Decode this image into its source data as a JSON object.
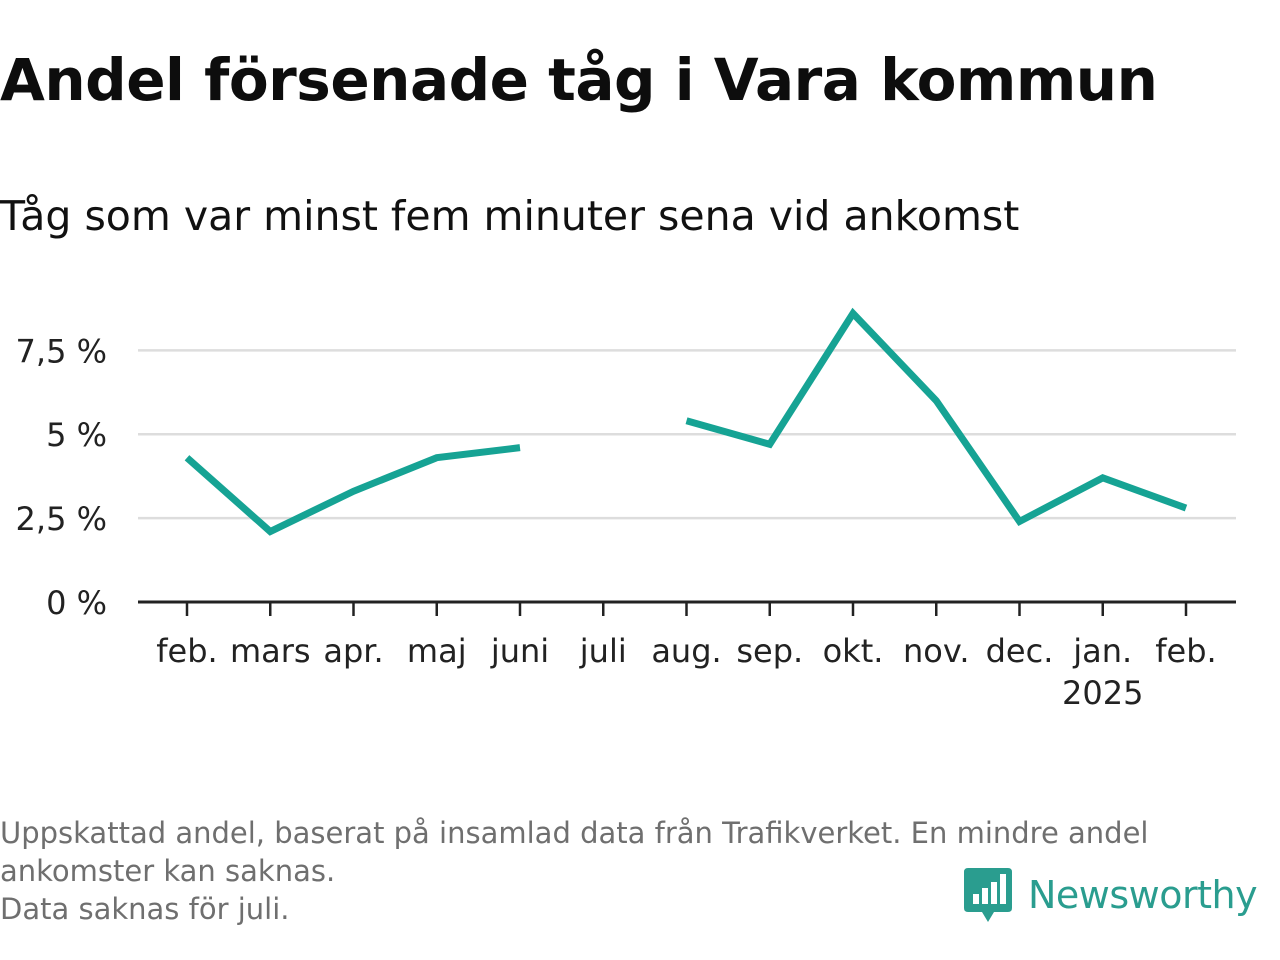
{
  "title": "Andel försenade tåg i Vara kommun",
  "subtitle": "Tåg som var minst fem minuter sena vid ankomst",
  "chart_data": {
    "type": "line",
    "categories": [
      "feb.",
      "mars",
      "apr.",
      "maj",
      "juni",
      "juli",
      "aug.",
      "sep.",
      "okt.",
      "nov.",
      "dec.",
      "jan.",
      "feb."
    ],
    "category_sublabels": [
      "",
      "",
      "",
      "",
      "",
      "",
      "",
      "",
      "",
      "",
      "",
      "2025",
      ""
    ],
    "series": [
      {
        "values": [
          4.3,
          2.1,
          3.3,
          4.3,
          4.6,
          null,
          5.4,
          4.7,
          8.6,
          6.0,
          2.4,
          3.7,
          2.8
        ]
      }
    ],
    "yticks": [
      0,
      2.5,
      5,
      7.5
    ],
    "ytick_labels": [
      "0 %",
      "2,5 %",
      "5 %",
      "7,5 %"
    ],
    "ylim": [
      0,
      9.0
    ],
    "grid": true,
    "line_color": "#16a394",
    "grid_color": "#dddddd",
    "axis_color": "#222222"
  },
  "footnote": {
    "line1": "Uppskattad andel, baserat på insamlad data från Trafikverket. En mindre andel",
    "line2": "ankomster kan saknas.",
    "line3": "Data saknas för juli."
  },
  "brand": {
    "name": "Newsworthy",
    "icon": "newsworthy-logo-icon",
    "color": "#2a9d8f"
  }
}
